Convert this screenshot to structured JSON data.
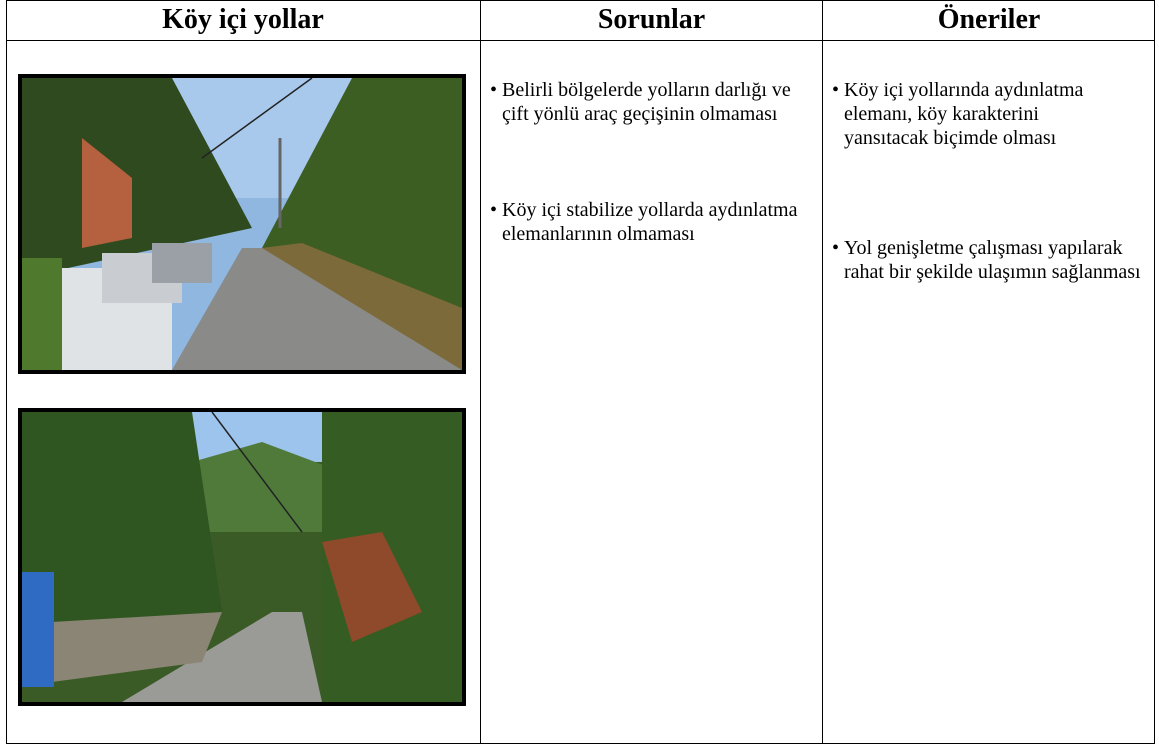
{
  "columns": [
    {
      "header": "Köy içi yollar"
    },
    {
      "header": "Sorunlar",
      "items": [
        "Belirli bölgelerde yolların darlığı ve çift yönlü araç geçişinin olmaması",
        "Köy içi stabilize yollarda aydınlatma elemanlarının olmaması"
      ]
    },
    {
      "header": "Öneriler",
      "items": [
        "Köy içi yollarında aydınlatma elemanı, köy karakterini yansıtacak biçimde olması",
        "Yol genişletme çalışması yapılarak rahat bir şekilde ulaşımın sağlanması"
      ]
    }
  ]
}
